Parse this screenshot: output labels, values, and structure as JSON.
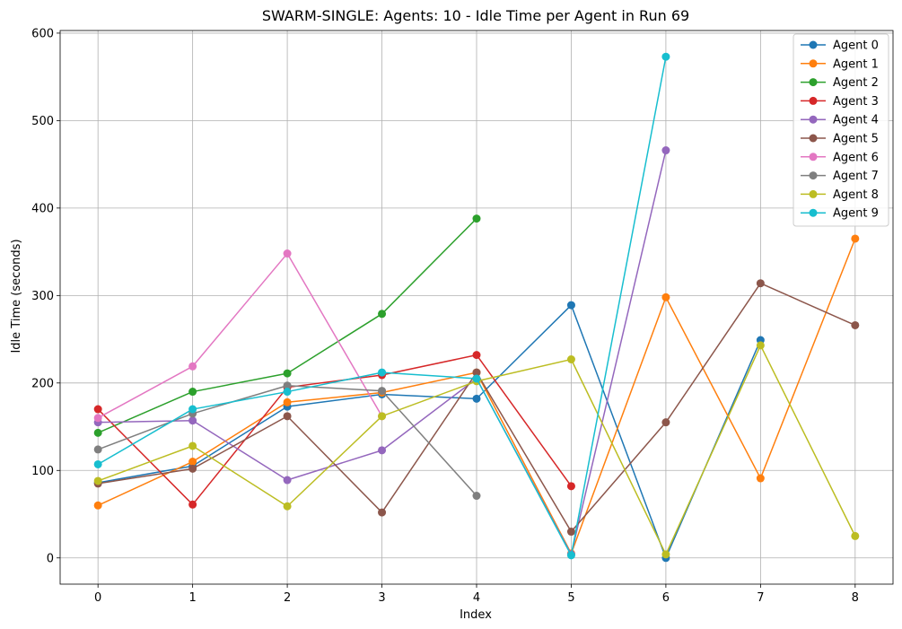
{
  "chart_data": {
    "type": "line",
    "title": "SWARM-SINGLE: Agents: 10 - Idle Time per Agent in Run 69",
    "xlabel": "Index",
    "ylabel": "Idle Time (seconds)",
    "xlim": [
      -0.4,
      8.4
    ],
    "ylim": [
      -30,
      603
    ],
    "xticks": [
      0,
      1,
      2,
      3,
      4,
      5,
      6,
      7,
      8
    ],
    "yticks": [
      0,
      100,
      200,
      300,
      400,
      500,
      600
    ],
    "grid": true,
    "legend_position": "top-right",
    "series": [
      {
        "name": "Agent 0",
        "color": "#1f77b4",
        "x": [
          0,
          1,
          2,
          3,
          4,
          5,
          6,
          7
        ],
        "y": [
          86,
          105,
          173,
          187,
          182,
          289,
          0,
          249
        ]
      },
      {
        "name": "Agent 1",
        "color": "#ff7f0e",
        "x": [
          0,
          1,
          2,
          3,
          4,
          5,
          6,
          7,
          8
        ],
        "y": [
          60,
          110,
          178,
          189,
          212,
          5,
          298,
          91,
          365
        ]
      },
      {
        "name": "Agent 2",
        "color": "#2ca02c",
        "x": [
          0,
          1,
          2,
          3,
          4
        ],
        "y": [
          143,
          190,
          211,
          279,
          388
        ]
      },
      {
        "name": "Agent 3",
        "color": "#d62728",
        "x": [
          0,
          1,
          2,
          3,
          4,
          5
        ],
        "y": [
          170,
          61,
          195,
          209,
          232,
          82
        ]
      },
      {
        "name": "Agent 4",
        "color": "#9467bd",
        "x": [
          0,
          1,
          2,
          3,
          4,
          5,
          6
        ],
        "y": [
          155,
          157,
          89,
          123,
          205,
          4,
          466
        ]
      },
      {
        "name": "Agent 5",
        "color": "#8c564b",
        "x": [
          0,
          1,
          2,
          3,
          4,
          5,
          6,
          7,
          8
        ],
        "y": [
          85,
          102,
          162,
          52,
          212,
          30,
          155,
          314,
          266
        ]
      },
      {
        "name": "Agent 6",
        "color": "#e377c2",
        "x": [
          0,
          1,
          2,
          3
        ],
        "y": [
          160,
          219,
          348,
          162
        ]
      },
      {
        "name": "Agent 7",
        "color": "#7f7f7f",
        "x": [
          0,
          1,
          2,
          3,
          4
        ],
        "y": [
          124,
          165,
          197,
          191,
          71
        ]
      },
      {
        "name": "Agent 8",
        "color": "#bcbd22",
        "x": [
          0,
          1,
          2,
          3,
          4,
          5,
          6,
          7,
          8
        ],
        "y": [
          88,
          128,
          59,
          162,
          202,
          227,
          4,
          243,
          25
        ]
      },
      {
        "name": "Agent 9",
        "color": "#17becf",
        "x": [
          0,
          1,
          2,
          3,
          4,
          5,
          6
        ],
        "y": [
          107,
          170,
          190,
          212,
          205,
          3,
          573
        ]
      }
    ]
  }
}
